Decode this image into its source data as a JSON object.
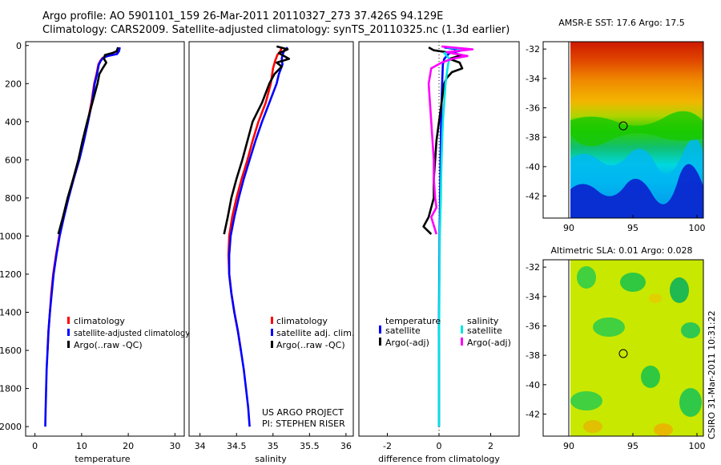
{
  "figure": {
    "title_line1": "Argo profile: AO 5901101_159 26-Mar-2011 20110327_273 37.426S 94.129E",
    "title_line2": "Climatology: CARS2009. Satellite-adjusted climatology: synTS_20110325.nc (1.3d earlier)",
    "credit_project": "US ARGO PROJECT",
    "credit_pi": "PI: STEPHEN RISER",
    "side_stamp": "CSIRO 31-Mar-2011 10:31:22"
  },
  "colors": {
    "climatology": "#ff0000",
    "satellite": "#0000ff",
    "argo": "#000000",
    "satellite_salinity": "#00e5e5",
    "argo_salinity": "#ff00ff"
  },
  "chart_data": [
    {
      "type": "line",
      "panel": "temperature",
      "xlabel": "temperature",
      "ylabel": "",
      "xlim": [
        -2,
        32
      ],
      "ylim": [
        2050,
        -20
      ],
      "y_inverted": true,
      "xticks": [
        0,
        10,
        20,
        30
      ],
      "yticks": [
        0,
        200,
        400,
        600,
        800,
        1000,
        1200,
        1400,
        1600,
        1800,
        2000
      ],
      "legend": [
        "climatology",
        "satellite-adjusted climatology",
        "Argo(..raw -QC)"
      ],
      "legend_location": "lower-center",
      "series": [
        {
          "name": "climatology",
          "color_key": "climatology",
          "points": [
            [
              18,
              10
            ],
            [
              17.9,
              30
            ],
            [
              17.5,
              45
            ],
            [
              15.5,
              55
            ],
            [
              14.5,
              65
            ],
            [
              14,
              80
            ],
            [
              13.6,
              100
            ],
            [
              13.2,
              150
            ],
            [
              12.7,
              200
            ],
            [
              12.1,
              300
            ],
            [
              11.3,
              400
            ],
            [
              10.4,
              500
            ],
            [
              9.4,
              600
            ],
            [
              8.2,
              700
            ],
            [
              7.1,
              800
            ],
            [
              6.1,
              900
            ],
            [
              5.2,
              1000
            ],
            [
              4.5,
              1100
            ],
            [
              3.9,
              1200
            ],
            [
              3.5,
              1300
            ],
            [
              3.2,
              1400
            ],
            [
              2.9,
              1500
            ],
            [
              2.7,
              1600
            ]
          ]
        },
        {
          "name": "satellite-adjusted climatology",
          "color_key": "satellite",
          "points": [
            [
              18.2,
              10
            ],
            [
              18,
              30
            ],
            [
              17.6,
              45
            ],
            [
              15.6,
              55
            ],
            [
              14.6,
              65
            ],
            [
              14.1,
              80
            ],
            [
              13.7,
              100
            ],
            [
              13.3,
              150
            ],
            [
              12.8,
              200
            ],
            [
              12.2,
              300
            ],
            [
              11.4,
              400
            ],
            [
              10.5,
              500
            ],
            [
              9.5,
              600
            ],
            [
              8.3,
              700
            ],
            [
              7.2,
              800
            ],
            [
              6.2,
              900
            ],
            [
              5.3,
              1000
            ],
            [
              4.6,
              1100
            ],
            [
              4,
              1200
            ],
            [
              3.6,
              1300
            ],
            [
              3.2,
              1400
            ],
            [
              2.9,
              1500
            ],
            [
              2.7,
              1600
            ],
            [
              2.5,
              1700
            ],
            [
              2.4,
              1800
            ],
            [
              2.3,
              1900
            ],
            [
              2.2,
              2000
            ]
          ]
        },
        {
          "name": "Argo(..raw -QC)",
          "color_key": "argo",
          "points": [
            [
              17.8,
              10
            ],
            [
              17.5,
              30
            ],
            [
              16.5,
              40
            ],
            [
              15,
              50
            ],
            [
              14.8,
              70
            ],
            [
              15.3,
              90
            ],
            [
              14.5,
              120
            ],
            [
              13.8,
              150
            ],
            [
              13.4,
              200
            ],
            [
              12.3,
              300
            ],
            [
              11.2,
              400
            ],
            [
              10.2,
              500
            ],
            [
              9.3,
              600
            ],
            [
              8.2,
              700
            ],
            [
              7,
              800
            ],
            [
              6,
              900
            ],
            [
              5,
              990
            ]
          ]
        }
      ]
    },
    {
      "type": "line",
      "panel": "salinity",
      "xlabel": "salinity",
      "ylabel": "",
      "xlim": [
        33.85,
        36.1
      ],
      "ylim": [
        2050,
        -20
      ],
      "y_inverted": true,
      "xticks": [
        34,
        34.5,
        35,
        35.5,
        36
      ],
      "legend": [
        "climatology",
        "satellite adj. clim.",
        "Argo(..raw -QC)"
      ],
      "legend_location": "lower-center",
      "series": [
        {
          "name": "climatology",
          "color_key": "climatology",
          "points": [
            [
              35.12,
              10
            ],
            [
              35.1,
              30
            ],
            [
              35.06,
              50
            ],
            [
              35.03,
              80
            ],
            [
              35,
              120
            ],
            [
              34.97,
              200
            ],
            [
              34.9,
              300
            ],
            [
              34.8,
              400
            ],
            [
              34.72,
              500
            ],
            [
              34.65,
              600
            ],
            [
              34.57,
              700
            ],
            [
              34.5,
              800
            ],
            [
              34.44,
              900
            ],
            [
              34.4,
              1000
            ],
            [
              34.39,
              1100
            ],
            [
              34.4,
              1200
            ],
            [
              34.43,
              1300
            ],
            [
              34.47,
              1400
            ],
            [
              34.52,
              1500
            ],
            [
              34.56,
              1600
            ]
          ]
        },
        {
          "name": "satellite adj. clim.",
          "color_key": "satellite",
          "points": [
            [
              35.2,
              10
            ],
            [
              35.15,
              30
            ],
            [
              35.13,
              50
            ],
            [
              35.12,
              70
            ],
            [
              35.13,
              100
            ],
            [
              35.08,
              150
            ],
            [
              35.05,
              200
            ],
            [
              34.95,
              300
            ],
            [
              34.85,
              400
            ],
            [
              34.76,
              500
            ],
            [
              34.68,
              600
            ],
            [
              34.6,
              700
            ],
            [
              34.53,
              800
            ],
            [
              34.47,
              900
            ],
            [
              34.42,
              1000
            ],
            [
              34.4,
              1100
            ],
            [
              34.4,
              1200
            ],
            [
              34.43,
              1300
            ],
            [
              34.47,
              1400
            ],
            [
              34.52,
              1500
            ],
            [
              34.56,
              1600
            ],
            [
              34.6,
              1700
            ],
            [
              34.63,
              1800
            ],
            [
              34.66,
              1900
            ],
            [
              34.68,
              2000
            ]
          ]
        },
        {
          "name": "Argo(..raw -QC)",
          "color_key": "argo",
          "points": [
            [
              35.05,
              5
            ],
            [
              35.2,
              20
            ],
            [
              35.08,
              40
            ],
            [
              35.22,
              70
            ],
            [
              35.05,
              90
            ],
            [
              35.12,
              110
            ],
            [
              35.02,
              150
            ],
            [
              34.95,
              200
            ],
            [
              34.85,
              300
            ],
            [
              34.72,
              400
            ],
            [
              34.65,
              500
            ],
            [
              34.58,
              600
            ],
            [
              34.5,
              700
            ],
            [
              34.43,
              800
            ],
            [
              34.38,
              900
            ],
            [
              34.33,
              990
            ]
          ]
        }
      ]
    },
    {
      "type": "line",
      "panel": "difference",
      "xlabel": "difference from climatology",
      "ylabel": "",
      "xlim": [
        -3.1,
        3.1
      ],
      "ylim": [
        2050,
        -20
      ],
      "y_inverted": true,
      "xticks": [
        -2,
        0,
        2
      ],
      "zero_line": true,
      "legend_titles": [
        "temperature",
        "salinity"
      ],
      "legend": [
        "satellite",
        "Argo(-adj)",
        "satellite",
        "Argo(-adj)"
      ],
      "legend_location": "lower-center",
      "series": [
        {
          "name": "satellite",
          "group": "temperature",
          "color_key": "satellite",
          "points": [
            [
              0.2,
              10
            ],
            [
              0.9,
              25
            ],
            [
              0.4,
              40
            ],
            [
              0.2,
              70
            ],
            [
              0.15,
              100
            ],
            [
              0.12,
              200
            ],
            [
              0.1,
              300
            ],
            [
              0.08,
              400
            ],
            [
              0.07,
              500
            ],
            [
              0.06,
              600
            ],
            [
              0.05,
              700
            ],
            [
              0.04,
              800
            ],
            [
              0.03,
              900
            ],
            [
              0.02,
              1000
            ],
            [
              0.01,
              1200
            ],
            [
              0,
              1400
            ],
            [
              0,
              1600
            ],
            [
              0,
              1800
            ],
            [
              0,
              2000
            ]
          ]
        },
        {
          "name": "Argo(-adj)",
          "group": "temperature",
          "color_key": "argo",
          "points": [
            [
              -0.4,
              10
            ],
            [
              -0.2,
              25
            ],
            [
              0.3,
              35
            ],
            [
              0.9,
              50
            ],
            [
              0.4,
              70
            ],
            [
              0.8,
              90
            ],
            [
              0.9,
              120
            ],
            [
              0.5,
              140
            ],
            [
              0.3,
              170
            ],
            [
              0.2,
              200
            ],
            [
              0.1,
              300
            ],
            [
              0,
              400
            ],
            [
              -0.1,
              500
            ],
            [
              -0.15,
              600
            ],
            [
              -0.2,
              700
            ],
            [
              -0.2,
              800
            ],
            [
              -0.4,
              900
            ],
            [
              -0.6,
              950
            ],
            [
              -0.3,
              990
            ]
          ]
        },
        {
          "name": "satellite",
          "group": "salinity",
          "color_key": "satellite_salinity",
          "points": [
            [
              0.3,
              10
            ],
            [
              1,
              20
            ],
            [
              0.2,
              40
            ],
            [
              0.4,
              70
            ],
            [
              0.35,
              100
            ],
            [
              0.3,
              150
            ],
            [
              0.25,
              200
            ],
            [
              0.2,
              300
            ],
            [
              0.15,
              400
            ],
            [
              0.12,
              500
            ],
            [
              0.1,
              600
            ],
            [
              0.08,
              700
            ],
            [
              0.07,
              800
            ],
            [
              0.05,
              900
            ],
            [
              0.03,
              1000
            ],
            [
              0.02,
              1200
            ],
            [
              0.01,
              1400
            ],
            [
              0,
              1600
            ],
            [
              0,
              1800
            ],
            [
              0,
              2000
            ]
          ]
        },
        {
          "name": "Argo(-adj)",
          "group": "salinity",
          "color_key": "argo_salinity",
          "points": [
            [
              0.1,
              5
            ],
            [
              1.3,
              20
            ],
            [
              0.3,
              35
            ],
            [
              1.1,
              55
            ],
            [
              0.5,
              70
            ],
            [
              0.1,
              90
            ],
            [
              -0.3,
              120
            ],
            [
              -0.4,
              200
            ],
            [
              -0.35,
              300
            ],
            [
              -0.3,
              400
            ],
            [
              -0.25,
              500
            ],
            [
              -0.2,
              600
            ],
            [
              -0.2,
              700
            ],
            [
              -0.15,
              800
            ],
            [
              -0.1,
              850
            ],
            [
              -0.3,
              900
            ],
            [
              -0.1,
              990
            ]
          ]
        }
      ]
    },
    {
      "type": "heatmap",
      "panel": "amsr-e-sst",
      "title": "AMSR-E SST: 17.6  Argo: 17.5",
      "xlim": [
        88,
        100.5
      ],
      "ylim": [
        -43.5,
        -31.5
      ],
      "data_xlim": [
        90,
        100.5
      ],
      "xticks": [
        90,
        95,
        100
      ],
      "yticks": [
        -32,
        -34,
        -36,
        -38,
        -40,
        -42
      ],
      "argo_position": [
        94.129,
        -37.426
      ],
      "sst_value": 17.6,
      "argo_value": 17.5
    },
    {
      "type": "heatmap",
      "panel": "altimetric-sla",
      "title": "Altimetric SLA: 0.01  Argo: 0.028",
      "xlim": [
        88,
        100.5
      ],
      "ylim": [
        -43.5,
        -31.5
      ],
      "data_xlim": [
        90,
        100.5
      ],
      "xticks": [
        90,
        95,
        100
      ],
      "yticks": [
        -32,
        -34,
        -36,
        -38,
        -40,
        -42
      ],
      "argo_position": [
        94.129,
        -37.426
      ],
      "sla_value": 0.01,
      "argo_value": 0.028
    }
  ]
}
